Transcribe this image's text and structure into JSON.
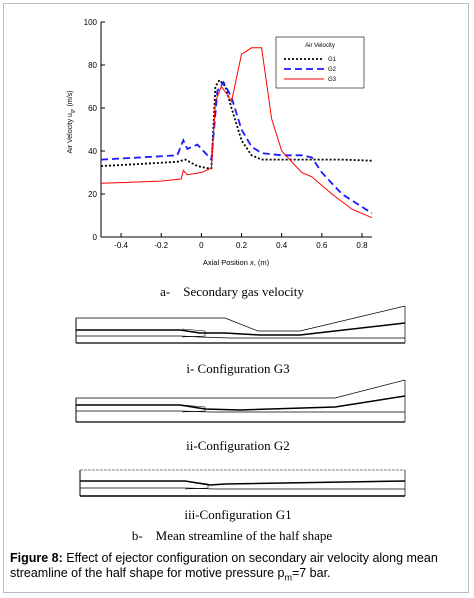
{
  "chart_data": {
    "type": "line",
    "ylabel_main": "Air Velocity u",
    "ylabel_sub": "g",
    "ylabel_unit": ", (m/s)",
    "xlabel_main": "Axial Position ",
    "xlabel_var": "x",
    "xlabel_unit": ", (m)",
    "legend_title": "Air Velocity",
    "legend": "upper right",
    "xlim": [
      -0.5,
      0.85
    ],
    "xticks": [
      -0.4,
      -0.2,
      0,
      0.2,
      0.4,
      0.6,
      0.8
    ],
    "ylim": [
      0,
      100
    ],
    "yticks": [
      0,
      20,
      40,
      60,
      80,
      100
    ],
    "series": [
      {
        "name": "G1",
        "color": "#000000",
        "dash": "2,2",
        "x": [
          -0.5,
          -0.3,
          -0.12,
          -0.08,
          -0.02,
          0.03,
          0.05,
          0.07,
          0.09,
          0.12,
          0.15,
          0.2,
          0.25,
          0.3,
          0.5,
          0.7,
          0.85
        ],
        "values": [
          33,
          34,
          35,
          36,
          33,
          32,
          32,
          70,
          73,
          70,
          60,
          45,
          38,
          36,
          36,
          36,
          35.5
        ]
      },
      {
        "name": "G2",
        "color": "#1a1aff",
        "dash": "7,4",
        "x": [
          -0.5,
          -0.3,
          -0.12,
          -0.09,
          -0.07,
          -0.02,
          0.03,
          0.05,
          0.08,
          0.11,
          0.15,
          0.2,
          0.25,
          0.3,
          0.4,
          0.5,
          0.55,
          0.6,
          0.7,
          0.8,
          0.85
        ],
        "values": [
          36,
          37,
          38,
          45,
          41,
          43,
          38,
          36,
          68,
          72,
          65,
          50,
          42,
          39,
          38,
          38,
          37,
          30,
          20,
          14,
          11
        ]
      },
      {
        "name": "G3",
        "color": "#ff0000",
        "dash": "",
        "x": [
          -0.5,
          -0.2,
          -0.1,
          -0.09,
          -0.07,
          0,
          0.05,
          0.07,
          0.1,
          0.13,
          0.15,
          0.2,
          0.25,
          0.3,
          0.35,
          0.4,
          0.5,
          0.55,
          0.65,
          0.75,
          0.85
        ],
        "values": [
          25,
          26,
          27,
          31,
          29,
          30,
          32,
          63,
          70,
          66,
          63,
          85,
          88,
          88,
          55,
          40,
          30,
          28,
          20,
          13,
          9
        ]
      }
    ]
  },
  "panel_labels": {
    "a": "a-    Secondary gas velocity",
    "b": "b-    Mean streamline of the half shape"
  },
  "configurations": [
    "i- Configuration G3",
    "ii-Configuration G2",
    "iii-Configuration G1"
  ],
  "caption": {
    "label": "Figure 8:",
    "text": " Effect of ejector configuration on secondary air velocity along mean streamline of the half shape for motive pressure p",
    "sub": "m",
    "tail": "=7 bar."
  }
}
